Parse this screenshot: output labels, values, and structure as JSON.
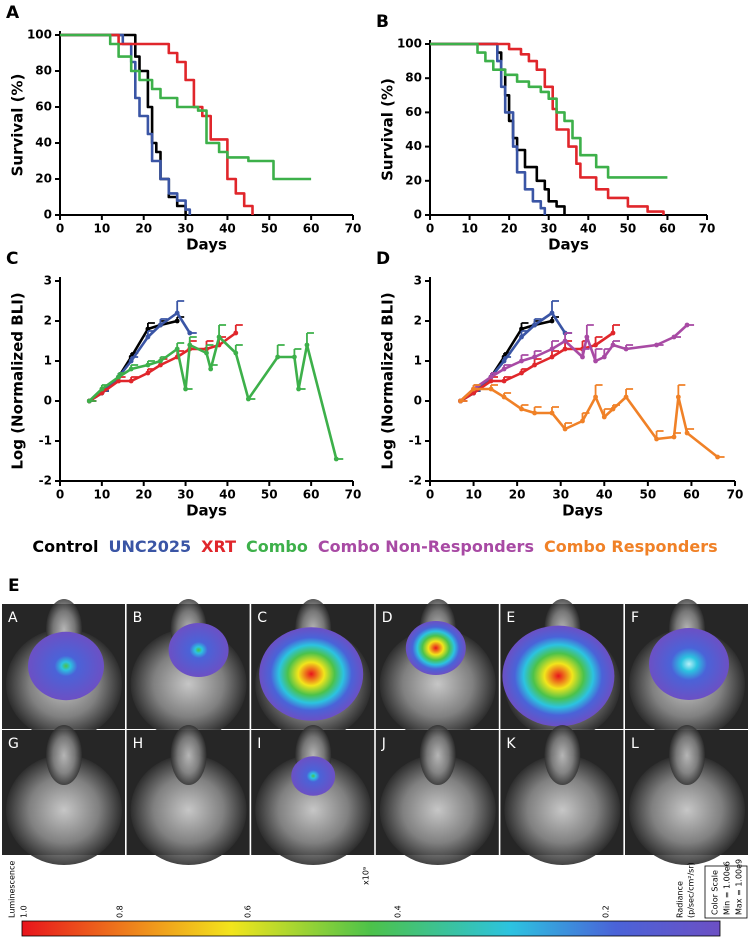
{
  "chart_data": [
    {
      "type": "line",
      "label": "A",
      "xlabel": "Days",
      "ylabel": "Survival (%)",
      "xlim": [
        0,
        70
      ],
      "xticks": [
        0,
        10,
        20,
        30,
        40,
        50,
        60,
        70
      ],
      "ylim": [
        0,
        100
      ],
      "yticks": [
        0,
        20,
        40,
        60,
        80,
        100
      ],
      "series": [
        {
          "color": "#000000",
          "x": [
            0,
            18,
            18,
            19,
            19,
            21,
            21,
            22,
            22,
            23,
            23,
            24,
            24,
            26,
            26,
            28,
            28,
            30,
            30
          ],
          "y": [
            100,
            100,
            88,
            88,
            80,
            80,
            60,
            60,
            40,
            40,
            35,
            35,
            20,
            20,
            10,
            10,
            5,
            5,
            0
          ]
        },
        {
          "color": "#3a55a5",
          "x": [
            0,
            15,
            15,
            17,
            17,
            18,
            18,
            19,
            19,
            21,
            21,
            22,
            22,
            24,
            24,
            26,
            26,
            28,
            28,
            30,
            30,
            31,
            31
          ],
          "y": [
            100,
            100,
            95,
            95,
            85,
            85,
            65,
            65,
            55,
            55,
            45,
            45,
            30,
            30,
            20,
            20,
            12,
            12,
            8,
            8,
            3,
            3,
            0
          ]
        },
        {
          "color": "#e0262b",
          "x": [
            0,
            14,
            14,
            26,
            26,
            28,
            28,
            30,
            30,
            32,
            32,
            34,
            34,
            36,
            36,
            40,
            40,
            42,
            42,
            44,
            44,
            46,
            46
          ],
          "y": [
            100,
            100,
            95,
            95,
            90,
            90,
            85,
            85,
            75,
            75,
            60,
            60,
            55,
            55,
            42,
            42,
            20,
            20,
            12,
            12,
            5,
            5,
            0
          ]
        },
        {
          "color": "#3db04a",
          "x": [
            0,
            12,
            12,
            14,
            14,
            17,
            17,
            19,
            19,
            22,
            22,
            24,
            24,
            28,
            28,
            33,
            33,
            35,
            35,
            38,
            38,
            40,
            40,
            45,
            45,
            51,
            51,
            60
          ],
          "y": [
            100,
            100,
            95,
            95,
            88,
            88,
            80,
            80,
            75,
            75,
            70,
            70,
            65,
            65,
            60,
            60,
            58,
            58,
            40,
            40,
            35,
            35,
            32,
            32,
            30,
            30,
            20,
            20
          ]
        }
      ]
    },
    {
      "type": "line",
      "label": "B",
      "xlabel": "Days",
      "ylabel": "Survival (%)",
      "xlim": [
        0,
        70
      ],
      "xticks": [
        0,
        10,
        20,
        30,
        40,
        50,
        60,
        70
      ],
      "ylim": [
        0,
        100
      ],
      "yticks": [
        0,
        20,
        40,
        60,
        80,
        100
      ],
      "series": [
        {
          "color": "#000000",
          "x": [
            0,
            17,
            17,
            18,
            18,
            19,
            19,
            20,
            20,
            21,
            21,
            22,
            22,
            24,
            24,
            27,
            27,
            29,
            29,
            30,
            30,
            32,
            32,
            34,
            34
          ],
          "y": [
            100,
            100,
            95,
            95,
            85,
            85,
            70,
            70,
            55,
            55,
            45,
            45,
            38,
            38,
            28,
            28,
            20,
            20,
            15,
            15,
            8,
            8,
            5,
            5,
            0
          ]
        },
        {
          "color": "#3a55a5",
          "x": [
            0,
            17,
            17,
            18,
            18,
            19,
            19,
            21,
            21,
            22,
            22,
            24,
            24,
            26,
            26,
            28,
            28,
            29,
            29
          ],
          "y": [
            100,
            100,
            90,
            90,
            75,
            75,
            60,
            60,
            40,
            40,
            25,
            25,
            15,
            15,
            8,
            8,
            4,
            4,
            0
          ]
        },
        {
          "color": "#e0262b",
          "x": [
            0,
            20,
            20,
            23,
            23,
            25,
            25,
            27,
            27,
            29,
            29,
            31,
            31,
            32,
            32,
            35,
            35,
            37,
            37,
            38,
            38,
            42,
            42,
            45,
            45,
            50,
            50,
            55,
            55,
            59,
            59
          ],
          "y": [
            100,
            100,
            97,
            97,
            94,
            94,
            90,
            90,
            85,
            85,
            75,
            75,
            62,
            62,
            50,
            50,
            40,
            40,
            30,
            30,
            22,
            22,
            15,
            15,
            10,
            10,
            5,
            5,
            2,
            2,
            0
          ]
        },
        {
          "color": "#3db04a",
          "x": [
            0,
            12,
            12,
            14,
            14,
            16,
            16,
            19,
            19,
            22,
            22,
            25,
            25,
            28,
            28,
            30,
            30,
            32,
            32,
            34,
            34,
            36,
            36,
            38,
            38,
            42,
            42,
            45,
            45,
            60
          ],
          "y": [
            100,
            100,
            95,
            95,
            90,
            90,
            85,
            85,
            82,
            82,
            78,
            78,
            75,
            75,
            72,
            72,
            68,
            68,
            60,
            60,
            55,
            55,
            45,
            45,
            35,
            35,
            28,
            28,
            22,
            22
          ]
        }
      ]
    },
    {
      "type": "line",
      "label": "C",
      "xlabel": "Days",
      "ylabel": "Log (Normalized BLI)",
      "markers": true,
      "xlim": [
        0,
        70
      ],
      "xticks": [
        0,
        10,
        20,
        30,
        40,
        50,
        60,
        70
      ],
      "ylim": [
        -2,
        3
      ],
      "yticks": [
        -2,
        -1,
        0,
        1,
        2,
        3
      ],
      "series": [
        {
          "color": "#000000",
          "x": [
            7,
            10,
            14,
            17,
            21,
            24,
            28
          ],
          "y": [
            0,
            0.2,
            0.6,
            1.1,
            1.8,
            1.9,
            2.0
          ],
          "errors": [
            0,
            0.05,
            0.1,
            0.1,
            0.15,
            0.1,
            0.1
          ]
        },
        {
          "color": "#3a55a5",
          "x": [
            7,
            10,
            14,
            17,
            21,
            24,
            28,
            31
          ],
          "y": [
            0,
            0.2,
            0.6,
            1.0,
            1.6,
            1.9,
            2.2,
            1.7
          ],
          "errors": [
            0,
            0.05,
            0.1,
            0.1,
            0.15,
            0.15,
            0.3,
            0
          ]
        },
        {
          "color": "#e0262b",
          "x": [
            7,
            10,
            14,
            17,
            21,
            24,
            28,
            31,
            35,
            38,
            42
          ],
          "y": [
            0,
            0.2,
            0.5,
            0.5,
            0.7,
            0.9,
            1.1,
            1.3,
            1.3,
            1.4,
            1.7
          ],
          "errors": [
            0,
            0.1,
            0.1,
            0.1,
            0.1,
            0.15,
            0.15,
            0.2,
            0.2,
            0.2,
            0.2
          ]
        },
        {
          "color": "#3db04a",
          "x": [
            7,
            10,
            14,
            17,
            21,
            24,
            28,
            30,
            31,
            35,
            36,
            38,
            42,
            45,
            52,
            56,
            57,
            59,
            66
          ],
          "y": [
            0,
            0.3,
            0.6,
            0.8,
            0.9,
            1.0,
            1.3,
            0.3,
            1.4,
            1.2,
            0.8,
            1.6,
            1.2,
            0.05,
            1.1,
            1.1,
            0.3,
            1.4,
            -1.45
          ],
          "errors": [
            0,
            0.1,
            0.1,
            0.1,
            0.1,
            0.1,
            0.15,
            0,
            0.2,
            0.2,
            0.1,
            0.3,
            0.2,
            0,
            0.3,
            0.2,
            0,
            0.3,
            0
          ]
        }
      ]
    },
    {
      "type": "line",
      "label": "D",
      "xlabel": "Days",
      "ylabel": "Log (Normalized BLI)",
      "markers": true,
      "xlim": [
        0,
        70
      ],
      "xticks": [
        0,
        10,
        20,
        30,
        40,
        50,
        60,
        70
      ],
      "ylim": [
        -2,
        3
      ],
      "yticks": [
        -2,
        -1,
        0,
        1,
        2,
        3
      ],
      "series": [
        {
          "color": "#000000",
          "x": [
            7,
            10,
            14,
            17,
            21,
            24,
            28
          ],
          "y": [
            0,
            0.2,
            0.6,
            1.1,
            1.8,
            1.9,
            2.0
          ],
          "errors": [
            0,
            0.05,
            0.1,
            0.1,
            0.15,
            0.1,
            0.1
          ]
        },
        {
          "color": "#3a55a5",
          "x": [
            7,
            10,
            14,
            17,
            21,
            24,
            28,
            31
          ],
          "y": [
            0,
            0.2,
            0.6,
            1.0,
            1.6,
            1.9,
            2.2,
            1.7
          ],
          "errors": [
            0,
            0.05,
            0.1,
            0.1,
            0.15,
            0.15,
            0.3,
            0
          ]
        },
        {
          "color": "#e0262b",
          "x": [
            7,
            10,
            14,
            17,
            21,
            24,
            28,
            31,
            35,
            38,
            42
          ],
          "y": [
            0,
            0.2,
            0.5,
            0.5,
            0.7,
            0.9,
            1.1,
            1.3,
            1.3,
            1.4,
            1.7
          ],
          "errors": [
            0,
            0.1,
            0.1,
            0.1,
            0.1,
            0.15,
            0.15,
            0.2,
            0.2,
            0.2,
            0.2
          ]
        },
        {
          "color": "#a84aa4",
          "x": [
            7,
            10,
            14,
            17,
            21,
            24,
            28,
            31,
            35,
            36,
            38,
            40,
            42,
            45,
            52,
            56,
            59
          ],
          "y": [
            0,
            0.3,
            0.6,
            0.8,
            1.0,
            1.1,
            1.3,
            1.5,
            1.1,
            1.6,
            1.0,
            1.1,
            1.4,
            1.3,
            1.4,
            1.6,
            1.9
          ],
          "errors": [
            0,
            0.1,
            0.1,
            0.1,
            0.15,
            0.15,
            0.2,
            0.2,
            0.2,
            0.3,
            0.3,
            0.2,
            0.1,
            0.1,
            0,
            0,
            0
          ]
        },
        {
          "color": "#f08127",
          "x": [
            7,
            10,
            14,
            17,
            21,
            24,
            28,
            31,
            35,
            38,
            40,
            42,
            45,
            52,
            56,
            57,
            59,
            66
          ],
          "y": [
            0,
            0.3,
            0.3,
            0.1,
            -0.2,
            -0.3,
            -0.3,
            -0.7,
            -0.5,
            0.1,
            -0.4,
            -0.2,
            0.1,
            -0.95,
            -0.9,
            0.1,
            -0.8,
            -1.4
          ],
          "errors": [
            0,
            0.1,
            0.1,
            0.1,
            0.1,
            0.15,
            0.15,
            0.15,
            0.2,
            0.3,
            0.2,
            0.1,
            0.2,
            0.2,
            0.1,
            0.3,
            0.1,
            0
          ]
        }
      ]
    }
  ],
  "legend": [
    {
      "name": "Control",
      "color": "#000000"
    },
    {
      "name": "UNC2025",
      "color": "#3a55a5"
    },
    {
      "name": "XRT",
      "color": "#e0262b"
    },
    {
      "name": "Combo",
      "color": "#3db04a"
    },
    {
      "name": "Combo Non-Responders",
      "color": "#a84aa4"
    },
    {
      "name": "Combo Responders",
      "color": "#f08127"
    }
  ],
  "imaging": {
    "label": "E",
    "panels": [
      "A",
      "B",
      "C",
      "D",
      "E",
      "F",
      "G",
      "H",
      "I",
      "J",
      "K",
      "L"
    ]
  },
  "colorbar": {
    "title": "Luminescence",
    "ticks": [
      "1.0",
      "0.8",
      "0.6",
      "0.4",
      "0.2"
    ],
    "multiplier": "x10⁹",
    "unit": [
      "Radiance",
      "(p/sec/cm²/sr)"
    ],
    "scale": [
      "Color Scale",
      "Min = 1.00e6",
      "Max = 1.00e9"
    ]
  }
}
